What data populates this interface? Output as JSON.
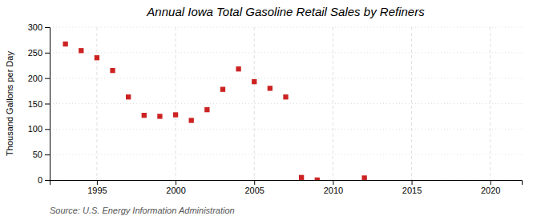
{
  "chart_data": {
    "type": "scatter",
    "title": "Annual Iowa Total Gasoline Retail Sales by Refiners",
    "ylabel": "Thousand Gallons per Day",
    "source": "Source: U.S. Energy Information Administration",
    "x": [
      1993,
      1994,
      1995,
      1996,
      1997,
      1998,
      1999,
      2000,
      2001,
      2002,
      2003,
      2004,
      2005,
      2006,
      2007,
      2008,
      2009,
      2012
    ],
    "y": [
      267,
      254,
      240,
      215,
      163,
      127,
      125,
      128,
      117,
      138,
      178,
      218,
      193,
      180,
      163,
      5,
      0,
      4
    ],
    "color": "#cc2222",
    "marker": "square",
    "xlim": [
      1992,
      2022
    ],
    "ylim": [
      0,
      300
    ],
    "xticks": [
      1995,
      2000,
      2005,
      2010,
      2015,
      2020
    ],
    "yticks": [
      0,
      50,
      100,
      150,
      200,
      250,
      300
    ],
    "grid": true
  }
}
